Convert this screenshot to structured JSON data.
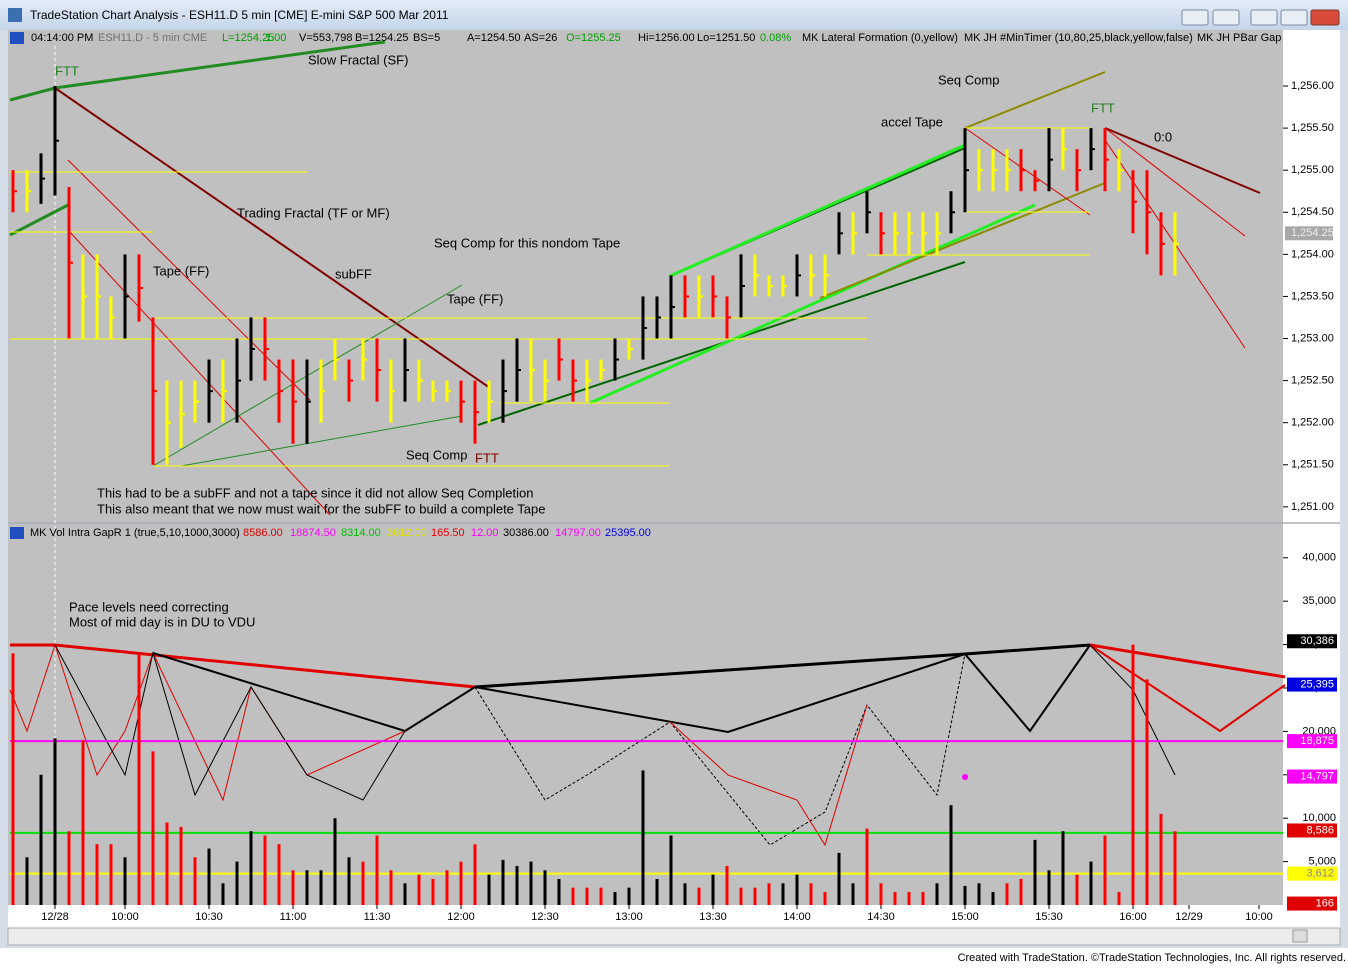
{
  "window_title": "TradeStation Chart Analysis - ESH11.D 5 min [CME] E-mini S&P 500 Mar 2011",
  "footer": "Created with TradeStation. ©TradeStation Technologies, Inc. All rights reserved.",
  "chart_data": {
    "type": "ohlc",
    "status_line": [
      {
        "text": "04:14:00 PM",
        "color": "#000000"
      },
      {
        "text": "ESH11.D - 5 min  CME",
        "color": "#707070"
      },
      {
        "text": "L=1254.25",
        "color": "#00a000"
      },
      {
        "text": "1.00",
        "color": "#00a000"
      },
      {
        "text": "V=553,798",
        "color": "#000000"
      },
      {
        "text": "B=1254.25",
        "color": "#000000"
      },
      {
        "text": "BS=5",
        "color": "#000000"
      },
      {
        "text": "A=1254.50",
        "color": "#000000"
      },
      {
        "text": "AS=26",
        "color": "#000000"
      },
      {
        "text": "O=1255.25",
        "color": "#00a000"
      },
      {
        "text": "Hi=1256.00",
        "color": "#000000"
      },
      {
        "text": "Lo=1251.50",
        "color": "#000000"
      },
      {
        "text": "0.08%",
        "color": "#00a000"
      },
      {
        "text": "MK Lateral Formation (0,yellow)",
        "color": "#000000"
      },
      {
        "text": "MK JH #MinTimer (10,80,25,black,yellow,false)",
        "color": "#000000"
      },
      {
        "text": "MK JH PBar Gap",
        "color": "#000000"
      }
    ],
    "time_labels": [
      {
        "value": 3,
        "label": "12/28"
      },
      {
        "value": 8,
        "label": "10:00"
      },
      {
        "value": 14,
        "label": "10:30"
      },
      {
        "value": 20,
        "label": "11:00"
      },
      {
        "value": 26,
        "label": "11:30"
      },
      {
        "value": 32,
        "label": "12:00"
      },
      {
        "value": 38,
        "label": "12:30"
      },
      {
        "value": 44,
        "label": "13:00"
      },
      {
        "value": 50,
        "label": "13:30"
      },
      {
        "value": 56,
        "label": "14:00"
      },
      {
        "value": 62,
        "label": "14:30"
      },
      {
        "value": 68,
        "label": "15:00"
      },
      {
        "value": 74,
        "label": "15:30"
      },
      {
        "value": 80,
        "label": "16:00"
      },
      {
        "value": 84,
        "label": "12/29"
      },
      {
        "value": 89,
        "label": "10:00"
      }
    ],
    "price_panel": {
      "ylim": [
        1250.82,
        1256.63
      ],
      "yticks": [
        {
          "value": 1251,
          "label": "1,251.00"
        },
        {
          "value": 1251.5,
          "label": "1,251.50"
        },
        {
          "value": 1252,
          "label": "1,252.00"
        },
        {
          "value": 1252.5,
          "label": "1,252.50"
        },
        {
          "value": 1253,
          "label": "1,253.00"
        },
        {
          "value": 1253.5,
          "label": "1,253.50"
        },
        {
          "value": 1254,
          "label": "1,254.00"
        },
        {
          "value": 1254.5,
          "label": "1,254.50"
        },
        {
          "value": 1255,
          "label": "1,255.00"
        },
        {
          "value": 1255.5,
          "label": "1,255.50"
        },
        {
          "value": 1256,
          "label": "1,256.00"
        }
      ],
      "last_price": {
        "value": 1254.25,
        "label": "1,254.25"
      },
      "high": [
        1255,
        1255,
        1255.2,
        1256,
        1254.8,
        1254,
        1254,
        1253.5,
        1254,
        1254,
        1253.25,
        1252.5,
        1252.5,
        1252.5,
        1252.75,
        1252.75,
        1253,
        1253.25,
        1253.25,
        1252.75,
        1252.75,
        1252.75,
        1252.75,
        1253,
        1252.75,
        1253,
        1253,
        1252.75,
        1253,
        1252.75,
        1252.5,
        1252.5,
        1252.5,
        1252.5,
        1252.5,
        1252.75,
        1253,
        1253,
        1252.75,
        1253,
        1252.75,
        1252.75,
        1252.75,
        1253,
        1253,
        1253.5,
        1253.5,
        1253.75,
        1253.75,
        1253.75,
        1253.75,
        1253.5,
        1254,
        1254,
        1253.75,
        1253.75,
        1254,
        1254,
        1254,
        1254.5,
        1254.5,
        1254.75,
        1254.5,
        1254.5,
        1254.5,
        1254.5,
        1254.5,
        1254.75,
        1255.5,
        1255.25,
        1255.25,
        1255.25,
        1255.25,
        1255,
        1255.5,
        1255.5,
        1255.25,
        1255.5,
        1255.5,
        1255.25,
        1255,
        1255,
        1254.5,
        1254.5
      ],
      "low": [
        1254.5,
        1254.5,
        1254.6,
        1254.7,
        1253,
        1253,
        1253,
        1253,
        1253,
        1253.2,
        1251.5,
        1251.5,
        1251.7,
        1252,
        1252,
        1252,
        1252,
        1252.5,
        1252.5,
        1252,
        1251.75,
        1251.75,
        1252,
        1252.5,
        1252.25,
        1252.5,
        1252.25,
        1252,
        1252.25,
        1252.25,
        1252.25,
        1252.25,
        1252,
        1251.75,
        1252,
        1252,
        1252.25,
        1252.25,
        1252.25,
        1252.5,
        1252.25,
        1252.25,
        1252.5,
        1252.5,
        1252.75,
        1252.75,
        1253,
        1253,
        1253.25,
        1253.25,
        1253.25,
        1253,
        1253.25,
        1253.5,
        1253.5,
        1253.5,
        1253.5,
        1253.5,
        1253.5,
        1254,
        1254,
        1254.25,
        1254,
        1254,
        1254,
        1254,
        1254,
        1254.25,
        1254.5,
        1254.75,
        1254.75,
        1254.75,
        1254.75,
        1254.75,
        1254.75,
        1255,
        1254.75,
        1255,
        1254.75,
        1254.75,
        1254.25,
        1254,
        1253.75,
        1253.75
      ],
      "colors": [
        "red",
        "yellow",
        "black",
        "black",
        "red",
        "yellow",
        "yellow",
        "yellow",
        "black",
        "red",
        "red",
        "yellow",
        "yellow",
        "yellow",
        "black",
        "yellow",
        "black",
        "black",
        "red",
        "red",
        "red",
        "black",
        "yellow",
        "yellow",
        "red",
        "yellow",
        "red",
        "yellow",
        "black",
        "yellow",
        "yellow",
        "yellow",
        "red",
        "red",
        "yellow",
        "black",
        "black",
        "yellow",
        "yellow",
        "red",
        "red",
        "yellow",
        "yellow",
        "black",
        "yellow",
        "black",
        "black",
        "black",
        "red",
        "yellow",
        "red",
        "red",
        "black",
        "yellow",
        "yellow",
        "yellow",
        "black",
        "yellow",
        "yellow",
        "black",
        "yellow",
        "black",
        "red",
        "yellow",
        "yellow",
        "yellow",
        "yellow",
        "black",
        "black",
        "yellow",
        "yellow",
        "yellow",
        "red",
        "red",
        "black",
        "yellow",
        "red",
        "black",
        "red",
        "yellow",
        "red",
        "red",
        "red",
        "yellow"
      ]
    },
    "volume_panel": {
      "type": "bar",
      "title": "MK Vol Intra GapR 1 (true,5,10,1000,3000)",
      "readings": [
        {
          "text": "8586.00",
          "color": "#e00000"
        },
        {
          "text": "18874.50",
          "color": "#ff00ff"
        },
        {
          "text": "8314.00",
          "color": "#00c000"
        },
        {
          "text": "3612.00",
          "color": "#e0e000"
        },
        {
          "text": "165.50",
          "color": "#e00000"
        },
        {
          "text": "12.00",
          "color": "#ff00ff"
        },
        {
          "text": "30386.00",
          "color": "#000000"
        },
        {
          "text": "14797.00",
          "color": "#ff00ff"
        },
        {
          "text": "25395.00",
          "color": "#0000e0"
        }
      ],
      "ylim": [
        0,
        42050
      ],
      "yticks": [
        {
          "value": 5000,
          "label": "5,000"
        },
        {
          "value": 10000,
          "label": "10,000"
        },
        {
          "value": 15000,
          "label": "15,000"
        },
        {
          "value": 20000,
          "label": "20,000"
        },
        {
          "value": 25000,
          "label": "25,000"
        },
        {
          "value": 30000,
          "label": "30,000"
        },
        {
          "value": 35000,
          "label": "35,000"
        },
        {
          "value": 40000,
          "label": "40,000"
        }
      ],
      "values": [
        29000,
        5500,
        15000,
        19200,
        8500,
        19000,
        7000,
        7000,
        5500,
        29000,
        17700,
        9500,
        9000,
        5500,
        6500,
        2500,
        5000,
        8500,
        8000,
        7000,
        4000,
        4000,
        4000,
        10000,
        5500,
        5000,
        8000,
        4000,
        2500,
        3500,
        3000,
        4000,
        5000,
        7000,
        3500,
        5200,
        4500,
        5000,
        4000,
        3000,
        2000,
        2000,
        2000,
        1500,
        2000,
        15500,
        3000,
        8000,
        2500,
        2000,
        3500,
        4500,
        2000,
        2000,
        2500,
        2500,
        3500,
        2500,
        1500,
        6000,
        2500,
        8800,
        2500,
        1500,
        1500,
        1500,
        2500,
        11500,
        2200,
        2500,
        1500,
        2500,
        3000,
        7500,
        4000,
        8500,
        3500,
        5000,
        8000,
        1500,
        30000,
        26000,
        10500,
        8500
      ],
      "colors": [
        "red",
        "black",
        "black",
        "black",
        "red",
        "red",
        "red",
        "red",
        "black",
        "red",
        "red",
        "red",
        "red",
        "red",
        "black",
        "black",
        "black",
        "black",
        "red",
        "red",
        "red",
        "black",
        "black",
        "black",
        "black",
        "red",
        "red",
        "red",
        "black",
        "red",
        "red",
        "red",
        "red",
        "red",
        "black",
        "black",
        "black",
        "black",
        "black",
        "black",
        "red",
        "red",
        "red",
        "black",
        "black",
        "black",
        "black",
        "black",
        "black",
        "red",
        "black",
        "red",
        "red",
        "red",
        "red",
        "black",
        "black",
        "red",
        "red",
        "black",
        "black",
        "red",
        "red",
        "red",
        "red",
        "red",
        "black",
        "black",
        "black",
        "black",
        "black",
        "red",
        "red",
        "black",
        "black",
        "black",
        "red",
        "black",
        "red",
        "red",
        "red",
        "red",
        "red",
        "red"
      ],
      "lines": [
        {
          "value": 18874.5,
          "color": "#ff00ff"
        },
        {
          "value": 8314,
          "color": "#00e000"
        },
        {
          "value": 3612,
          "color": "#ffff00"
        }
      ],
      "levels": [
        {
          "value": 30386,
          "label": "30,386",
          "color": "#000000"
        },
        {
          "value": 25395,
          "label": "25,395",
          "color": "#0000e0"
        },
        {
          "value": 18875,
          "label": "18,875",
          "color": "#ff00ff"
        },
        {
          "value": 14797,
          "label": "14,797",
          "color": "#ff00ff"
        },
        {
          "value": 8586,
          "label": "8,586",
          "color": "#e00000"
        },
        {
          "value": 3612,
          "label": "3,612",
          "color": "#ffff00"
        },
        {
          "value": 166,
          "label": "166",
          "color": "#e00000"
        }
      ]
    },
    "annotations": [
      "Slow Fractal (SF)",
      "FTT",
      "Trading Fractal (TF or MF)",
      "Seq Comp for this nondom Tape",
      "Tape (FF)",
      "subFF",
      "Tape (FF)",
      "Seq Comp",
      "FTT",
      "This had to be a subFF and not a tape since it did not allow Seq Completion",
      "This also meant that we now must wait for the subFF to build a complete Tape",
      "Seq Comp",
      "accel Tape",
      "FTT",
      "0:0",
      "Pace levels need correcting",
      "Most of mid day is in DU to VDU"
    ]
  }
}
